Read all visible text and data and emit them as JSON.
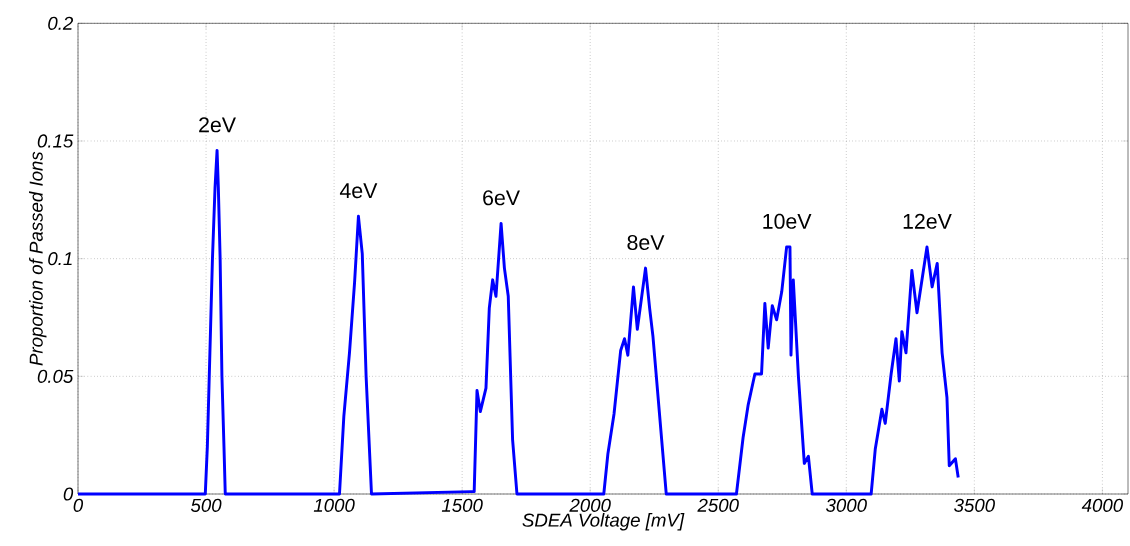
{
  "chart_data": {
    "type": "line",
    "xlabel": "SDEA Voltage [mV]",
    "ylabel": "Proportion of Passed Ions",
    "xlim": [
      0,
      4100
    ],
    "ylim": [
      0,
      0.2
    ],
    "xticks": [
      0,
      500,
      1000,
      1500,
      2000,
      2500,
      3000,
      3500,
      4000
    ],
    "yticks": [
      0,
      0.05,
      0.1,
      0.15,
      0.2
    ],
    "grid": true,
    "line_style": "solid",
    "series": [
      {
        "color": "#0000ff",
        "x": [
          0,
          497,
          505,
          515,
          525,
          535,
          543,
          548,
          555,
          562,
          570,
          575,
          1021,
          1038,
          1060,
          1080,
          1095,
          1110,
          1125,
          1146,
          1534,
          1547,
          1558,
          1571,
          1593,
          1606,
          1619,
          1632,
          1652,
          1665,
          1680,
          1697,
          1714,
          2053,
          2069,
          2093,
          2119,
          2134,
          2147,
          2169,
          2184,
          2216,
          2232,
          2245,
          2297,
          2571,
          2597,
          2617,
          2643,
          2669,
          2682,
          2695,
          2711,
          2728,
          2748,
          2767,
          2780,
          2784,
          2793,
          2813,
          2836,
          2852,
          2867,
          3097,
          3113,
          3139,
          3152,
          3175,
          3194,
          3207,
          3217,
          3233,
          3256,
          3276,
          3315,
          3335,
          3355,
          3361,
          3374,
          3393,
          3402,
          3426,
          3437
        ],
        "values": [
          0,
          0,
          0.02,
          0.06,
          0.1,
          0.13,
          0.146,
          0.13,
          0.1,
          0.05,
          0.02,
          0,
          0,
          0.033,
          0.06,
          0.09,
          0.118,
          0.102,
          0.05,
          0,
          0.001,
          0.001,
          0.044,
          0.035,
          0.045,
          0.079,
          0.091,
          0.084,
          0.115,
          0.096,
          0.084,
          0.023,
          0,
          0,
          0.017,
          0.034,
          0.061,
          0.066,
          0.059,
          0.088,
          0.07,
          0.096,
          0.079,
          0.067,
          0,
          0,
          0.024,
          0.038,
          0.051,
          0.051,
          0.081,
          0.062,
          0.08,
          0.074,
          0.086,
          0.105,
          0.105,
          0.059,
          0.091,
          0.05,
          0.013,
          0.016,
          0,
          0,
          0.019,
          0.036,
          0.03,
          0.051,
          0.066,
          0.048,
          0.069,
          0.06,
          0.095,
          0.077,
          0.105,
          0.088,
          0.098,
          0.086,
          0.06,
          0.041,
          0.012,
          0.015,
          0.007
        ]
      }
    ],
    "annotations": [
      {
        "text": "2eV",
        "x": 543,
        "y": 0.146
      },
      {
        "text": "4eV",
        "x": 1095,
        "y": 0.118
      },
      {
        "text": "6eV",
        "x": 1652,
        "y": 0.115
      },
      {
        "text": "8eV",
        "x": 2216,
        "y": 0.096
      },
      {
        "text": "10eV",
        "x": 2767,
        "y": 0.105
      },
      {
        "text": "12eV",
        "x": 3315,
        "y": 0.105
      }
    ]
  }
}
